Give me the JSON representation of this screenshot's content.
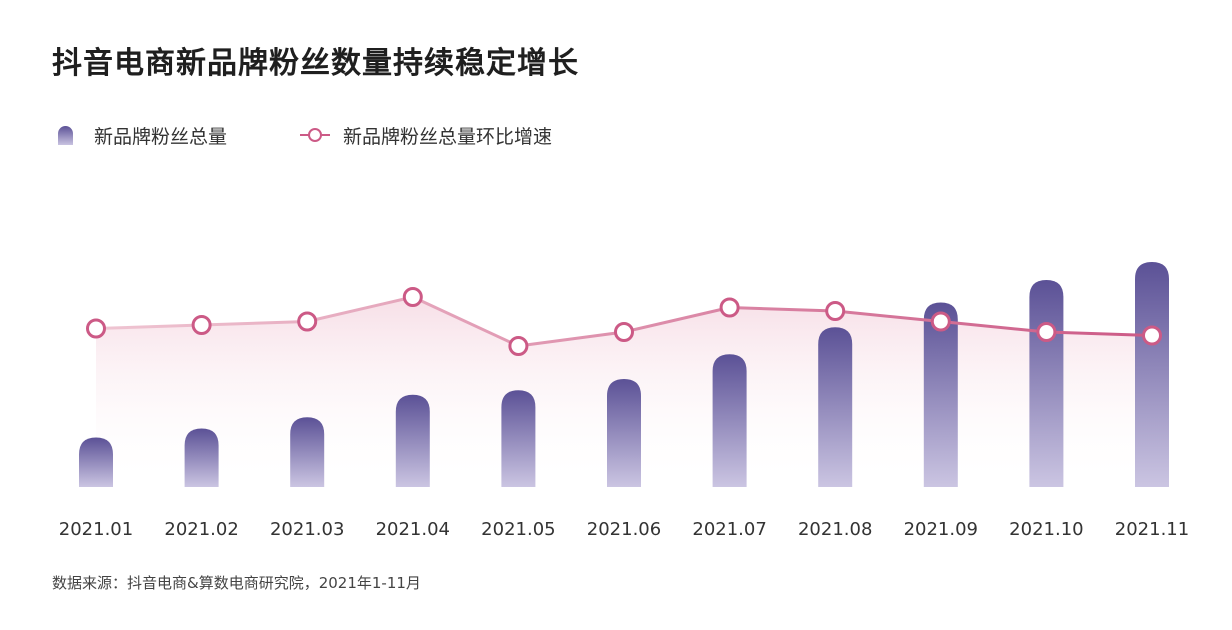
{
  "title": "抖音电商新品牌粉丝数量持续稳定增长",
  "legend": {
    "bar_label": "新品牌粉丝总量",
    "line_label": "新品牌粉丝总量环比增速"
  },
  "source": "数据来源：抖音电商&算数电商研究院，2021年1-11月",
  "colors": {
    "bar_top": "#5b5196",
    "bar_bottom": "#cbc5e2",
    "line": "#cc5a86",
    "line_light": "#efc5d2",
    "area_fill": "#f6dbe4"
  },
  "chart_data": {
    "type": "bar",
    "title": "抖音电商新品牌粉丝数量持续稳定增长",
    "categories": [
      "2021.01",
      "2021.02",
      "2021.03",
      "2021.04",
      "2021.05",
      "2021.06",
      "2021.07",
      "2021.08",
      "2021.09",
      "2021.10",
      "2021.11"
    ],
    "series": [
      {
        "name": "新品牌粉丝总量",
        "type": "bar",
        "values": [
          22,
          26,
          31,
          41,
          43,
          48,
          59,
          71,
          82,
          92,
          100
        ]
      },
      {
        "name": "新品牌粉丝总量环比增速",
        "type": "line",
        "values": [
          59,
          60,
          61,
          68,
          54,
          58,
          65,
          64,
          61,
          58,
          57
        ]
      }
    ],
    "ylim": [
      0,
      100
    ],
    "xlabel": "",
    "ylabel": "",
    "grid": false,
    "legend_position": "top-left"
  }
}
